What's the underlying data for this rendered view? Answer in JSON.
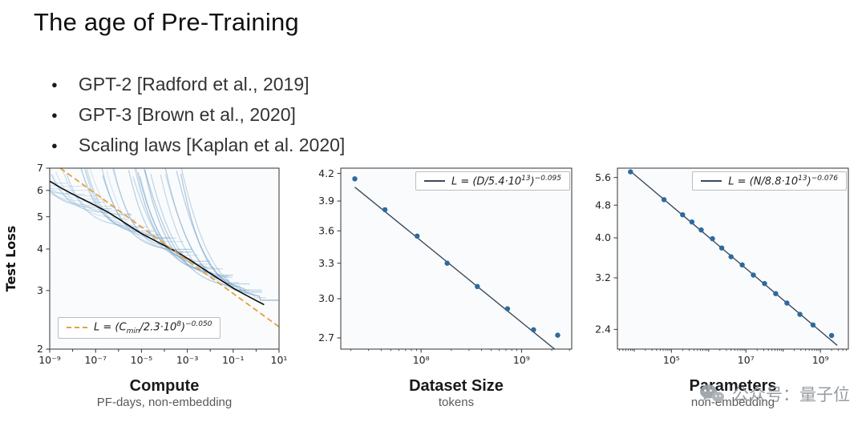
{
  "slide": {
    "title": "The age of Pre-Training",
    "bullets": [
      "GPT-2 [Radford et al., 2019]",
      "GPT-3 [Brown et al., 2020]",
      "Scaling laws [Kaplan et al. 2020]"
    ]
  },
  "watermark": {
    "text": "公众号：量子位"
  },
  "colors": {
    "curve_blue_light": "#a5c8e1",
    "curve_blue_dark": "#4f87b7",
    "envelope_black": "#0c0c0c",
    "fit_orange": "#E5A13D",
    "fit_dark": "#3A4A5E",
    "dot_blue": "#2d6a9f",
    "plot_bg": "#fafbfc",
    "axis": "#333333"
  },
  "chart_data": [
    {
      "type": "line",
      "xlabel": "Compute",
      "xsublabel": "PF-days, non-embedding",
      "ylabel": "Test Loss",
      "xscale": "log",
      "yscale": "log",
      "xlim_log10": [
        -9,
        1
      ],
      "ylim": [
        2,
        7
      ],
      "minor": "decades",
      "xticks": {
        "values_log10": [
          -9,
          -7,
          -5,
          -3,
          -1,
          1
        ],
        "labels": [
          "10⁻⁹",
          "10⁻⁷",
          "10⁻⁵",
          "10⁻³",
          "10⁻¹",
          "10¹"
        ]
      },
      "yticks": {
        "values": [
          2,
          3,
          4,
          5,
          6,
          7
        ],
        "labels": [
          "2",
          "3",
          "4",
          "5",
          "6",
          "7"
        ]
      },
      "legend": {
        "formula": "L = (C_{min}/2.3·10^{8})^{−0.050}",
        "style": "dashed",
        "position": "bottom-left"
      },
      "fit": {
        "scale_log10": 8.3617,
        "exponent": 0.05,
        "x0_log10": -8.54,
        "x1_log10": 1.0,
        "style": "dashed"
      },
      "envelope": {
        "x_log10": [
          -9,
          -8.5,
          -8,
          -7.5,
          -7,
          -6.5,
          -6,
          -5.5,
          -5,
          -4.5,
          -4,
          -3.5,
          -3,
          -2.5,
          -2,
          -1.5,
          -1,
          -0.5,
          0,
          0.35
        ],
        "loss": [
          6.4,
          6.1,
          5.85,
          5.62,
          5.4,
          5.18,
          4.93,
          4.68,
          4.45,
          4.27,
          4.1,
          3.93,
          3.75,
          3.56,
          3.38,
          3.21,
          3.05,
          2.92,
          2.8,
          2.72
        ]
      },
      "training_curves": {
        "count": 40,
        "seed": 7,
        "x_end_min_log10": -8.6,
        "x_end_max_log10": 0.3,
        "start_loss_min": 6.6,
        "start_loss_max": 7.3,
        "span_decades_min": 2.0,
        "span_decades_max": 3.6,
        "tail_decades": 0.7
      }
    },
    {
      "type": "scatter-line",
      "xlabel": "Dataset Size",
      "xsublabel": "tokens",
      "xscale": "log",
      "yscale": "log",
      "xlim_log10": [
        7.2,
        9.5
      ],
      "ylim": [
        2.62,
        4.26
      ],
      "minor": "log",
      "xticks": {
        "values_log10": [
          8,
          9
        ],
        "labels": [
          "10⁸",
          "10⁹"
        ]
      },
      "yticks": {
        "values": [
          2.7,
          3.0,
          3.3,
          3.6,
          3.9,
          4.2
        ],
        "labels": [
          "2.7",
          "3.0",
          "3.3",
          "3.6",
          "3.9",
          "4.2"
        ]
      },
      "legend": {
        "formula": "L = (D/5.4·10^{13})^{−0.095}",
        "style": "solid",
        "position": "top-right"
      },
      "fit": {
        "scale_log10": 13.7324,
        "exponent": 0.095,
        "x0_log10": 7.34,
        "x1_log10": 9.42,
        "style": "solid"
      },
      "points": {
        "x_log10": [
          7.34,
          7.64,
          7.96,
          8.26,
          8.56,
          8.86,
          9.12,
          9.36
        ],
        "loss": [
          4.14,
          3.81,
          3.55,
          3.3,
          3.1,
          2.92,
          2.76,
          2.72
        ]
      }
    },
    {
      "type": "scatter-line",
      "xlabel": "Parameters",
      "xsublabel": "non-embedding",
      "xscale": "log",
      "yscale": "log",
      "xlim_log10": [
        3.55,
        9.75
      ],
      "ylim": [
        2.15,
        5.9
      ],
      "minor": "log",
      "xticks": {
        "values_log10": [
          5,
          7,
          9
        ],
        "labels": [
          "10⁵",
          "10⁷",
          "10⁹"
        ]
      },
      "yticks": {
        "values": [
          2.4,
          3.2,
          4.0,
          4.8,
          5.6
        ],
        "labels": [
          "2.4",
          "3.2",
          "4.0",
          "4.8",
          "5.6"
        ]
      },
      "legend": {
        "formula": "L = (N/8.8·10^{13})^{−0.076}",
        "style": "solid",
        "position": "top-right"
      },
      "fit": {
        "scale_log10": 13.9445,
        "exponent": 0.076,
        "x0_log10": 3.9,
        "x1_log10": 9.45,
        "style": "solid"
      },
      "points": {
        "x_log10": [
          3.9,
          4.8,
          5.3,
          5.55,
          5.8,
          6.1,
          6.35,
          6.6,
          6.9,
          7.2,
          7.5,
          7.8,
          8.1,
          8.45,
          8.8,
          9.3
        ],
        "loss": [
          5.78,
          4.95,
          4.55,
          4.37,
          4.18,
          3.98,
          3.78,
          3.6,
          3.44,
          3.25,
          3.1,
          2.93,
          2.78,
          2.61,
          2.46,
          2.32
        ]
      }
    }
  ]
}
